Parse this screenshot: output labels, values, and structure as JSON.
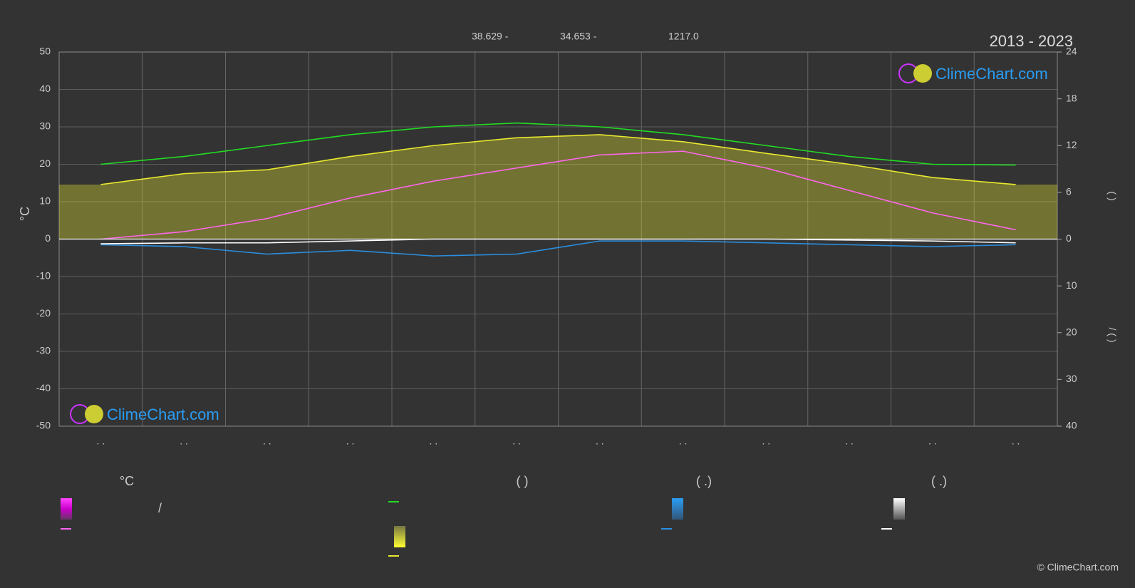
{
  "chart_data": {
    "type": "line",
    "title": "2013 - 2023",
    "stats": [
      "38.629 -",
      "34.653 -",
      "1217.0"
    ],
    "y_label": "°C",
    "y2_label": "(   )",
    "y3_label": "/  (  )",
    "categories": [
      ". .",
      ". .",
      ". .",
      ". .",
      ". .",
      ". .",
      ". .",
      ". .",
      ". .",
      ". .",
      ". .",
      ". ."
    ],
    "ylim": [
      -50,
      50
    ],
    "yticks": [
      -50,
      -40,
      -30,
      -20,
      -10,
      0,
      10,
      20,
      30,
      40,
      50
    ],
    "y2lim": [
      0,
      24
    ],
    "y2ticks": [
      0,
      6,
      12,
      18,
      24
    ],
    "y3lim": [
      0,
      40
    ],
    "y3ticks": [
      10,
      20,
      30,
      40
    ],
    "grid": true,
    "series": [
      {
        "name": "",
        "color": "#22dd22",
        "axis": "y2",
        "values": [
          9.6,
          10.6,
          12.0,
          13.4,
          14.4,
          14.9,
          14.4,
          13.4,
          12.0,
          10.6,
          9.6,
          9.5
        ]
      },
      {
        "name": "",
        "color": "#e8e830",
        "axis": "y2",
        "fill": true,
        "values": [
          7.0,
          8.4,
          8.9,
          10.6,
          12.0,
          13.0,
          13.4,
          12.5,
          11.0,
          9.6,
          7.9,
          7.0
        ]
      },
      {
        "name": "",
        "color": "#ff66ee",
        "values": [
          0,
          2,
          5.5,
          11,
          15.5,
          19,
          22.5,
          23.5,
          19,
          13,
          7,
          2.5
        ]
      },
      {
        "name": "",
        "color": "#2a8fe0",
        "axis": "y3",
        "values": [
          1.2,
          1.6,
          3.2,
          2.4,
          3.6,
          3.2,
          0.4,
          0.4,
          0.8,
          1.2,
          1.6,
          1.2
        ]
      },
      {
        "name": "",
        "color": "#ffffff",
        "axis": "y3",
        "values": [
          1.0,
          0.8,
          0.8,
          0.4,
          0,
          0,
          0,
          0,
          0,
          0.2,
          0.4,
          0.8
        ]
      }
    ],
    "legend_headers": [
      "°C",
      "(          )",
      "(   .)",
      "(   .)"
    ],
    "legend_text": "/",
    "logo": "ClimeChart.com",
    "copyright": "© ClimeChart.com"
  }
}
